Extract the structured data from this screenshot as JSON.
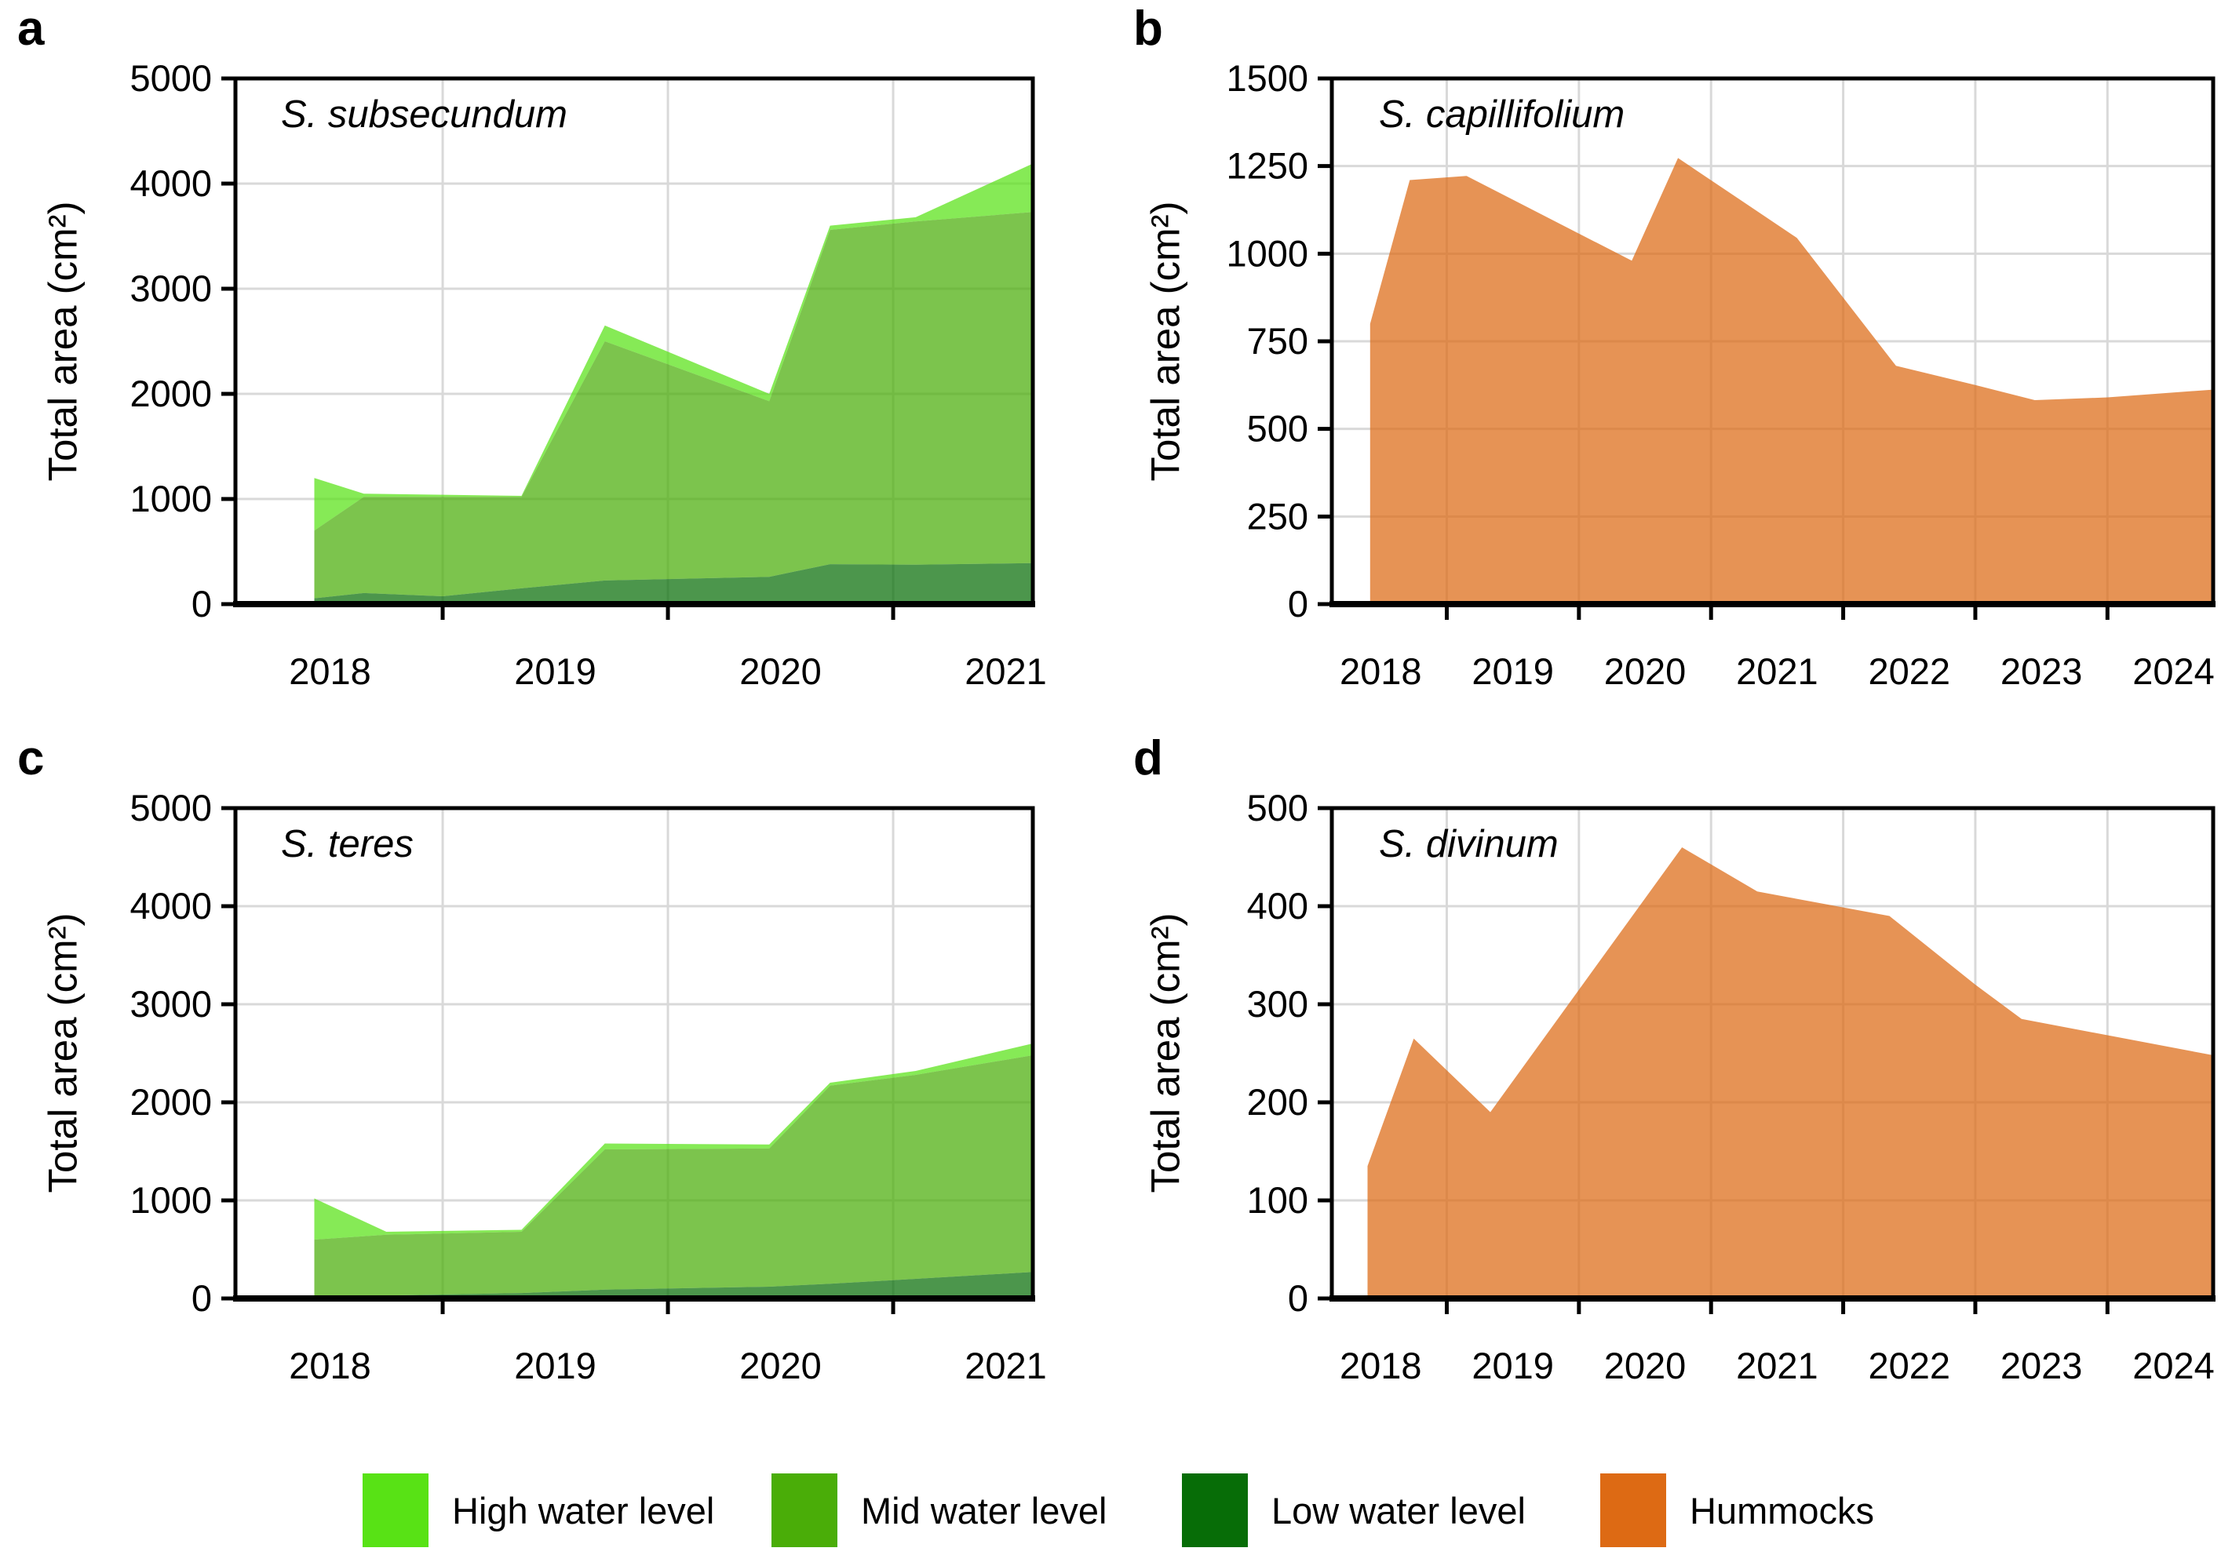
{
  "axis": {
    "y_label": "Total area (cm²)"
  },
  "legend": {
    "items": [
      {
        "label": "High water level",
        "color": "#58e215"
      },
      {
        "label": "Mid water level",
        "color": "#4aad08"
      },
      {
        "label": "Low water level",
        "color": "#076d07"
      },
      {
        "label": "Hummocks",
        "color": "#dd6a14"
      }
    ]
  },
  "style": {
    "fill_opacity": 0.72,
    "gridline_color": "#d9d9d9",
    "border_color": "#000000"
  },
  "chart_data": [
    {
      "type": "area",
      "panel": "a",
      "letter": "a",
      "title": "S. subsecundum",
      "ylabel": "Total area (cm²)",
      "ylim": [
        0,
        5000
      ],
      "ytick_step": 1000,
      "xlim": [
        2018.08,
        2021.62
      ],
      "grid_years": [
        2019,
        2020,
        2021
      ],
      "label_years": [
        2018,
        2019,
        2020,
        2021
      ],
      "x": [
        2018.43,
        2018.65,
        2019.0,
        2019.35,
        2019.72,
        2020.45,
        2020.72,
        2021.1,
        2021.62
      ],
      "series_note": "values are stacked cumulative top edges (cm2)",
      "series": [
        {
          "name": "High water level",
          "values": [
            1200,
            1050,
            1040,
            1030,
            2650,
            2000,
            3600,
            3680,
            4190
          ]
        },
        {
          "name": "Mid water level",
          "values": [
            700,
            1020,
            1020,
            1020,
            2500,
            1930,
            3560,
            3640,
            3730
          ]
        },
        {
          "name": "Low water level",
          "values": [
            55,
            105,
            75,
            150,
            225,
            260,
            380,
            375,
            390
          ]
        }
      ]
    },
    {
      "type": "area",
      "panel": "b",
      "letter": "b",
      "title": "S. capillifolium",
      "ylabel": "Total area (cm²)",
      "ylim": [
        0,
        1500
      ],
      "ytick_step": 250,
      "xlim": [
        2018.13,
        2024.8
      ],
      "grid_years": [
        2019,
        2020,
        2021,
        2022,
        2023,
        2024
      ],
      "label_years": [
        2018,
        2019,
        2020,
        2021,
        2022,
        2023,
        2024
      ],
      "x": [
        2018.42,
        2018.72,
        2019.15,
        2020.4,
        2020.75,
        2021.65,
        2022.4,
        2023.0,
        2023.45,
        2024.0,
        2024.8
      ],
      "series": [
        {
          "name": "Hummocks",
          "values": [
            800,
            1210,
            1222,
            980,
            1273,
            1045,
            680,
            625,
            582,
            590,
            612
          ]
        }
      ]
    },
    {
      "type": "area",
      "panel": "c",
      "letter": "c",
      "title": "S. teres",
      "ylabel": "Total area (cm²)",
      "ylim": [
        0,
        5000
      ],
      "ytick_step": 1000,
      "xlim": [
        2018.08,
        2021.62
      ],
      "grid_years": [
        2019,
        2020,
        2021
      ],
      "label_years": [
        2018,
        2019,
        2020,
        2021
      ],
      "x": [
        2018.43,
        2018.75,
        2019.35,
        2019.72,
        2020.45,
        2020.72,
        2021.1,
        2021.62
      ],
      "series_note": "values are stacked cumulative top edges (cm2)",
      "series": [
        {
          "name": "High water level",
          "values": [
            1020,
            680,
            700,
            1580,
            1570,
            2200,
            2320,
            2600
          ]
        },
        {
          "name": "Mid water level",
          "values": [
            600,
            650,
            680,
            1520,
            1530,
            2170,
            2280,
            2480
          ]
        },
        {
          "name": "Low water level",
          "values": [
            25,
            30,
            55,
            90,
            120,
            150,
            200,
            270
          ]
        }
      ]
    },
    {
      "type": "area",
      "panel": "d",
      "letter": "d",
      "title": "S. divinum",
      "ylabel": "Total area (cm²)",
      "ylim": [
        0,
        500
      ],
      "ytick_step": 100,
      "xlim": [
        2018.13,
        2024.8
      ],
      "grid_years": [
        2019,
        2020,
        2021,
        2022,
        2023,
        2024
      ],
      "label_years": [
        2018,
        2019,
        2020,
        2021,
        2022,
        2023,
        2024
      ],
      "x": [
        2018.4,
        2018.75,
        2019.33,
        2020.78,
        2021.35,
        2022.35,
        2023.0,
        2023.35,
        2024.8
      ],
      "series": [
        {
          "name": "Hummocks",
          "values": [
            135,
            265,
            190,
            460,
            415,
            390,
            320,
            285,
            248
          ]
        }
      ]
    }
  ]
}
